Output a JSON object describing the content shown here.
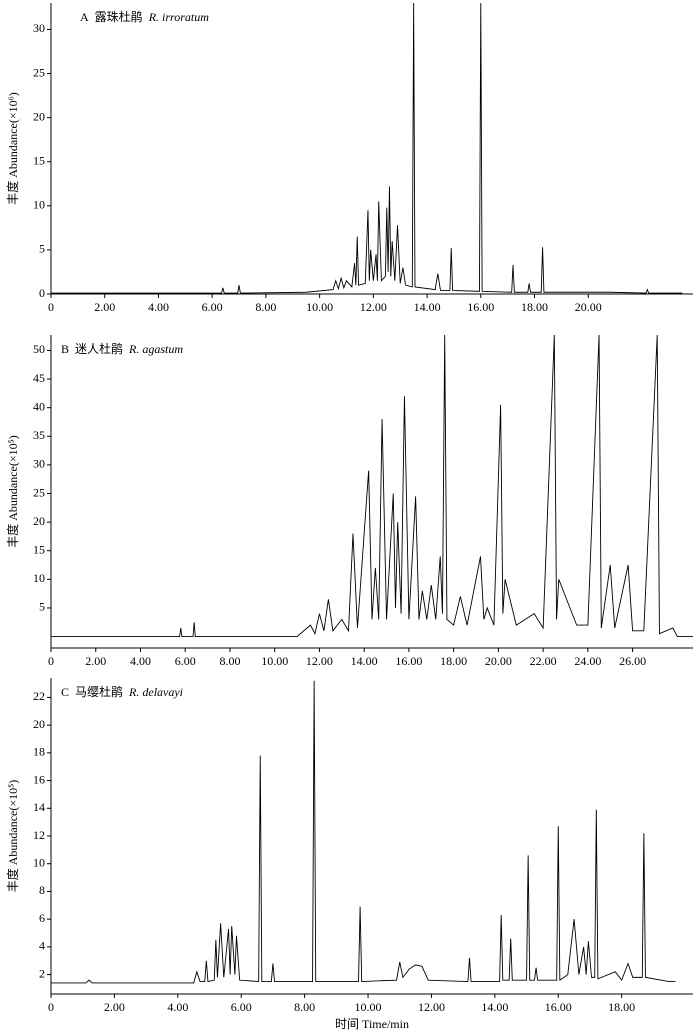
{
  "chart_data": [
    {
      "type": "line",
      "panel": "A",
      "title": "露珠杜鹃",
      "species": "R. irroratum",
      "ylabel": "丰度 Abundance(×10⁶)",
      "color": "#000000",
      "xlim": [
        0,
        23.9
      ],
      "ylim": [
        0,
        33
      ],
      "xticks": [
        0,
        {
          "value": 2,
          "label": "2.00"
        },
        {
          "value": 4,
          "label": "4.00"
        },
        {
          "value": 6,
          "label": "6.00"
        },
        {
          "value": 8,
          "label": "8.00"
        },
        {
          "value": 10,
          "label": "10.00"
        },
        {
          "value": 12,
          "label": "12.00"
        },
        {
          "value": 14,
          "label": "14.00"
        },
        {
          "value": 16,
          "label": "16.00"
        },
        {
          "value": 18,
          "label": "18.00"
        },
        {
          "value": 20,
          "label": "20.00"
        }
      ],
      "yticks": [
        0,
        5,
        10,
        15,
        20,
        25,
        30
      ],
      "x": [
        0,
        6.35,
        6.4,
        6.45,
        6.95,
        7.0,
        7.05,
        9.5,
        10.5,
        10.6,
        10.7,
        10.8,
        10.9,
        11.0,
        11.2,
        11.3,
        11.35,
        11.4,
        11.45,
        11.7,
        11.8,
        11.85,
        11.9,
        12.0,
        12.1,
        12.15,
        12.2,
        12.3,
        12.45,
        12.5,
        12.55,
        12.6,
        12.65,
        12.7,
        12.8,
        12.9,
        13.0,
        13.1,
        13.2,
        13.45,
        13.5,
        13.55,
        14.3,
        14.4,
        14.5,
        14.85,
        14.9,
        14.95,
        15.95,
        16.0,
        16.05,
        17.15,
        17.2,
        17.25,
        17.75,
        17.8,
        17.85,
        18.25,
        18.3,
        18.35,
        20.8,
        22.15,
        22.2,
        22.25,
        23.5
      ],
      "values": [
        0.1,
        0.1,
        0.7,
        0.1,
        0.1,
        1.0,
        0.1,
        0.2,
        0.5,
        1.5,
        0.6,
        1.8,
        0.7,
        1.5,
        0.8,
        3.5,
        1.0,
        6.5,
        1.0,
        1.2,
        9.5,
        1.5,
        5.0,
        1.5,
        4.5,
        1.5,
        10.5,
        1.5,
        2.0,
        9.8,
        2.5,
        12.2,
        2.0,
        6.0,
        1.5,
        7.8,
        1.2,
        3.0,
        1.0,
        0.8,
        33,
        0.8,
        0.5,
        2.3,
        0.4,
        0.4,
        5.2,
        0.4,
        0.3,
        33,
        0.3,
        0.2,
        3.3,
        0.2,
        0.2,
        1.2,
        0.2,
        0.2,
        5.3,
        0.2,
        0.2,
        0.1,
        0.5,
        0.1,
        0.1
      ]
    },
    {
      "type": "line",
      "panel": "B",
      "title": "迷人杜鹃",
      "species": "R. agastum",
      "ylabel": "丰度 Abundance(×10⁵)",
      "color": "#000000",
      "xlim": [
        0,
        28.7
      ],
      "ylim": [
        -2,
        52.7
      ],
      "xticks": [
        0,
        {
          "value": 2,
          "label": "2.00"
        },
        {
          "value": 4,
          "label": "4.00"
        },
        {
          "value": 6,
          "label": "6.00"
        },
        {
          "value": 8,
          "label": "8.00"
        },
        {
          "value": 10,
          "label": "10.00"
        },
        {
          "value": 12,
          "label": "12.00"
        },
        {
          "value": 14,
          "label": "14.00"
        },
        {
          "value": 16,
          "label": "16.00"
        },
        {
          "value": 18,
          "label": "18.00"
        },
        {
          "value": 20,
          "label": "20.00"
        },
        {
          "value": 22,
          "label": "22.00"
        },
        {
          "value": 24,
          "label": "24.00"
        },
        {
          "value": 26,
          "label": "26.00"
        }
      ],
      "yticks": [
        5,
        10,
        15,
        20,
        25,
        30,
        35,
        40,
        45,
        50
      ],
      "x": [
        0,
        5.75,
        5.8,
        5.85,
        6.35,
        6.4,
        6.45,
        11.0,
        11.6,
        11.8,
        12.0,
        12.2,
        12.4,
        12.6,
        13.0,
        13.3,
        13.5,
        13.7,
        14.2,
        14.35,
        14.5,
        14.65,
        14.8,
        15.0,
        15.3,
        15.4,
        15.5,
        15.65,
        15.8,
        16.0,
        16.3,
        16.45,
        16.6,
        16.8,
        17.0,
        17.2,
        17.4,
        17.5,
        17.6,
        17.7,
        18.0,
        18.3,
        18.6,
        19.2,
        19.35,
        19.5,
        19.8,
        20.1,
        20.2,
        20.3,
        20.8,
        21.6,
        22.0,
        22.5,
        22.6,
        22.7,
        23.5,
        24.0,
        24.5,
        24.6,
        25.0,
        25.2,
        25.8,
        26.0,
        26.5,
        27.1,
        27.2,
        27.8,
        28.0,
        28.7
      ],
      "values": [
        0,
        0,
        1.5,
        0,
        0,
        2.5,
        0,
        0,
        2,
        0.5,
        4,
        1,
        6.5,
        1,
        3,
        1,
        18,
        1.5,
        29,
        3,
        12,
        3,
        38,
        3,
        25,
        5,
        20,
        4,
        42,
        3,
        24.5,
        3,
        8,
        3,
        9,
        3,
        14,
        4,
        52.7,
        3,
        2,
        7,
        2,
        14,
        3,
        5,
        2,
        40.5,
        4,
        10,
        2,
        4,
        1.5,
        52.7,
        3,
        10,
        2,
        2,
        52.7,
        1.5,
        12.5,
        1.5,
        12.5,
        1,
        1,
        52.7,
        0.5,
        1.5,
        0,
        0
      ]
    },
    {
      "type": "line",
      "panel": "C",
      "title": "马缨杜鹃",
      "species": "R. delavayi",
      "ylabel": "丰度 Abundance(×10⁵)",
      "xlabel": "时间 Time/min",
      "color": "#000000",
      "xlim": [
        0,
        20.25
      ],
      "ylim": [
        0.6,
        23.4
      ],
      "xticks": [
        0,
        {
          "value": 2,
          "label": "2.00"
        },
        {
          "value": 4,
          "label": "4.00"
        },
        {
          "value": 6,
          "label": "6.00"
        },
        {
          "value": 8,
          "label": "8.00"
        },
        {
          "value": 10,
          "label": "10.00"
        },
        {
          "value": 12,
          "label": "12.00"
        },
        {
          "value": 14,
          "label": "14.00"
        },
        {
          "value": 16,
          "label": "16.00"
        },
        {
          "value": 18,
          "label": "18.00"
        }
      ],
      "yticks": [
        2,
        4,
        6,
        8,
        10,
        12,
        14,
        16,
        18,
        20,
        22
      ],
      "x": [
        0,
        1.1,
        1.2,
        1.3,
        4.5,
        4.6,
        4.7,
        4.85,
        4.9,
        4.95,
        5.15,
        5.2,
        5.25,
        5.35,
        5.45,
        5.6,
        5.65,
        5.7,
        5.8,
        5.85,
        5.95,
        6.55,
        6.6,
        6.65,
        6.95,
        7.0,
        7.05,
        8.25,
        8.3,
        8.35,
        9.7,
        9.75,
        9.8,
        10.9,
        11.0,
        11.1,
        11.3,
        11.5,
        11.7,
        11.9,
        13.15,
        13.2,
        13.25,
        14.15,
        14.2,
        14.25,
        14.45,
        14.5,
        14.55,
        15.0,
        15.05,
        15.1,
        15.25,
        15.3,
        15.35,
        15.95,
        16.0,
        16.05,
        16.3,
        16.5,
        16.65,
        16.8,
        16.88,
        16.95,
        17.05,
        17.15,
        17.2,
        17.25,
        17.8,
        18.0,
        18.2,
        18.35,
        18.65,
        18.7,
        18.75,
        19.5,
        19.7
      ],
      "values": [
        1.4,
        1.4,
        1.6,
        1.4,
        1.4,
        2.2,
        1.5,
        1.5,
        3.0,
        1.5,
        1.6,
        4.5,
        1.8,
        5.7,
        1.8,
        5.3,
        2.0,
        5.5,
        2.0,
        4.8,
        1.6,
        1.5,
        17.8,
        1.5,
        1.5,
        2.8,
        1.5,
        1.5,
        23.2,
        1.5,
        1.5,
        6.9,
        1.5,
        1.6,
        2.9,
        1.8,
        2.4,
        2.7,
        2.6,
        1.6,
        1.5,
        3.2,
        1.5,
        1.5,
        6.3,
        1.6,
        1.6,
        4.6,
        1.6,
        1.6,
        10.6,
        1.6,
        1.6,
        2.5,
        1.6,
        1.6,
        12.7,
        1.6,
        2.0,
        6.0,
        2.0,
        4.0,
        2.0,
        4.4,
        1.8,
        1.8,
        13.9,
        1.7,
        2.2,
        1.6,
        2.8,
        1.8,
        1.8,
        12.2,
        1.8,
        1.5,
        1.5
      ]
    }
  ]
}
